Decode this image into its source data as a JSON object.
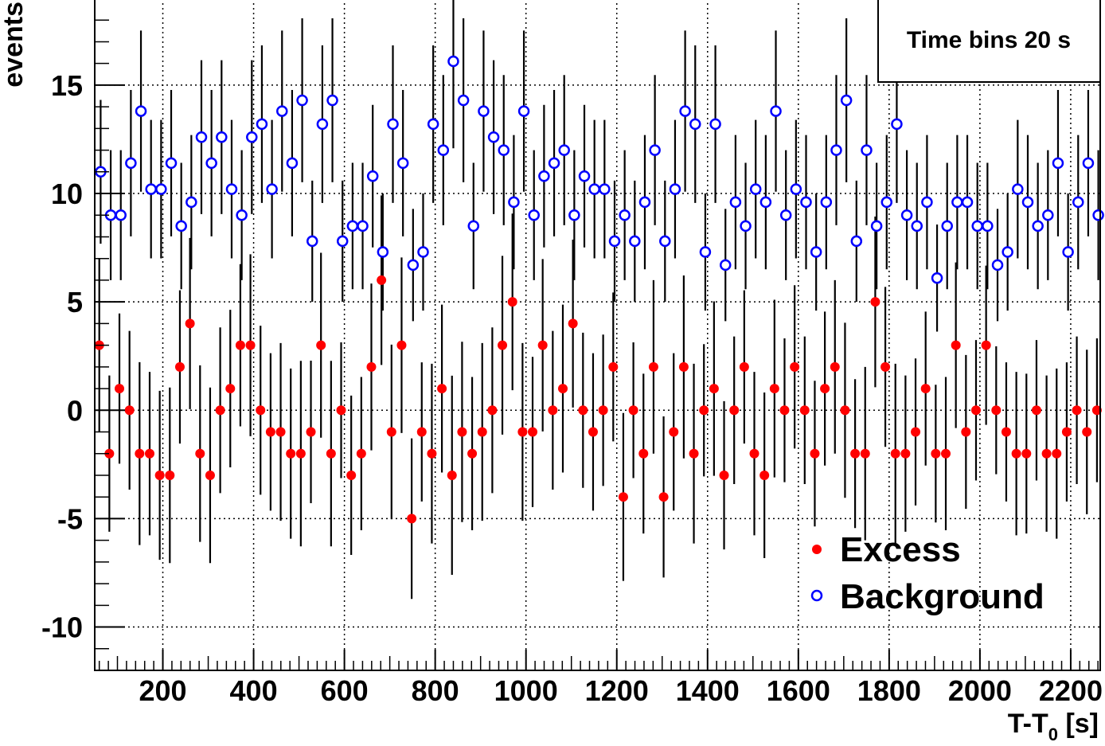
{
  "chart_data": {
    "type": "scatter",
    "ylabel": "events",
    "xlabel_main": "T-T",
    "xlabel_sub": "0",
    "xlabel_unit": " [s]",
    "xlim": [
      50,
      2265
    ],
    "ylim": [
      -12,
      19
    ],
    "xticks": [
      200,
      400,
      600,
      800,
      1000,
      1200,
      1400,
      1600,
      1800,
      2000,
      2200
    ],
    "yticks": [
      15,
      10,
      5,
      0,
      -5,
      -10
    ],
    "grid": true,
    "annotation": "Time bins 20 s",
    "legend_position": "bottom-right",
    "x_start": 60,
    "x_step": 22.2,
    "series": [
      {
        "name": "Excess",
        "marker": "filled-circle",
        "color": "#ff0000",
        "values": [
          3,
          -2,
          1,
          0,
          -2,
          -2,
          -3,
          -3,
          2,
          4,
          -2,
          -3,
          0,
          1,
          3,
          3,
          0,
          -1,
          -1,
          -2,
          -2,
          -1,
          3,
          -2,
          0,
          -3,
          -2,
          2,
          6,
          -1,
          3,
          -5,
          -1,
          -2,
          1,
          -3,
          -1,
          -2,
          -1,
          0,
          3,
          5,
          -1,
          -1,
          3,
          0,
          1,
          4,
          0,
          -1,
          0,
          2,
          -4,
          0,
          -2,
          2,
          -4,
          -1,
          2,
          -2,
          0,
          1,
          -3,
          0,
          2,
          -2,
          -3,
          1,
          0,
          2,
          0,
          -2,
          1,
          2,
          0,
          -2,
          -2,
          5,
          2,
          -2,
          -2,
          -1,
          1,
          -2,
          -2,
          3,
          -1,
          0,
          3,
          0,
          -1,
          -2,
          -2,
          0,
          -2,
          -2,
          -1,
          0,
          -1,
          0
        ]
      },
      {
        "name": "Background",
        "marker": "open-circle",
        "color": "#0000ff",
        "values": [
          11,
          9,
          9,
          11.4,
          13.8,
          10.2,
          10.2,
          11.4,
          8.5,
          9.6,
          12.6,
          11.4,
          12.6,
          10.2,
          9,
          12.6,
          13.2,
          10.2,
          13.8,
          11.4,
          14.3,
          7.8,
          13.2,
          14.3,
          7.8,
          8.5,
          8.5,
          10.8,
          7.3,
          13.2,
          11.4,
          6.7,
          7.3,
          13.2,
          12,
          16.1,
          14.3,
          8.5,
          13.8,
          12.6,
          12,
          9.6,
          13.8,
          9,
          10.8,
          11.4,
          12,
          9,
          10.8,
          10.2,
          10.2,
          7.8,
          9,
          7.8,
          9.6,
          12,
          7.8,
          10.2,
          13.8,
          13.2,
          7.3,
          13.2,
          6.7,
          9.6,
          8.5,
          10.2,
          9.6,
          13.8,
          9,
          10.2,
          9.6,
          7.3,
          9.6,
          12,
          14.3,
          7.8,
          12,
          8.5,
          9.6,
          13.2,
          9,
          8.5,
          9.6,
          6.1,
          8.5,
          9.6,
          9.6,
          8.5,
          8.5,
          6.7,
          7.3,
          10.2,
          9.6,
          8.5,
          9,
          11.4,
          7.3,
          9.6,
          11.4,
          9
        ]
      }
    ]
  }
}
